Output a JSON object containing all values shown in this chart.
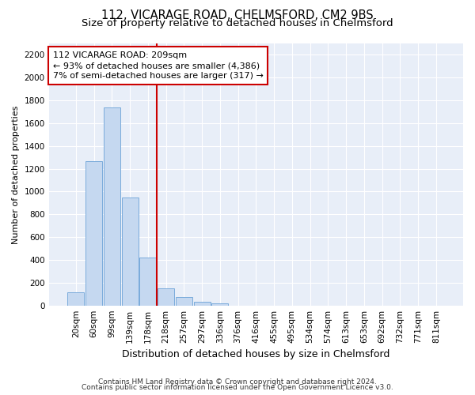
{
  "title1": "112, VICARAGE ROAD, CHELMSFORD, CM2 9BS",
  "title2": "Size of property relative to detached houses in Chelmsford",
  "xlabel": "Distribution of detached houses by size in Chelmsford",
  "ylabel": "Number of detached properties",
  "footnote1": "Contains HM Land Registry data © Crown copyright and database right 2024.",
  "footnote2": "Contains public sector information licensed under the Open Government Licence v3.0.",
  "categories": [
    "20sqm",
    "60sqm",
    "99sqm",
    "139sqm",
    "178sqm",
    "218sqm",
    "257sqm",
    "297sqm",
    "336sqm",
    "376sqm",
    "416sqm",
    "455sqm",
    "495sqm",
    "534sqm",
    "574sqm",
    "613sqm",
    "653sqm",
    "692sqm",
    "732sqm",
    "771sqm",
    "811sqm"
  ],
  "values": [
    115,
    1270,
    1740,
    950,
    420,
    150,
    75,
    35,
    20,
    0,
    0,
    0,
    0,
    0,
    0,
    0,
    0,
    0,
    0,
    0,
    0
  ],
  "bar_color": "#c5d8f0",
  "bar_edge_color": "#7aabdb",
  "vline_index": 5,
  "vline_color": "#cc0000",
  "annotation_text": "112 VICARAGE ROAD: 209sqm\n← 93% of detached houses are smaller (4,386)\n7% of semi-detached houses are larger (317) →",
  "annotation_box_facecolor": "#ffffff",
  "annotation_box_edgecolor": "#cc0000",
  "ylim": [
    0,
    2300
  ],
  "yticks": [
    0,
    200,
    400,
    600,
    800,
    1000,
    1200,
    1400,
    1600,
    1800,
    2000,
    2200
  ],
  "plot_bg_color": "#e8eef8",
  "grid_color": "#ffffff",
  "title1_fontsize": 10.5,
  "title2_fontsize": 9.5,
  "xlabel_fontsize": 9,
  "ylabel_fontsize": 8,
  "tick_fontsize": 7.5,
  "annot_fontsize": 8,
  "footnote_fontsize": 6.5
}
